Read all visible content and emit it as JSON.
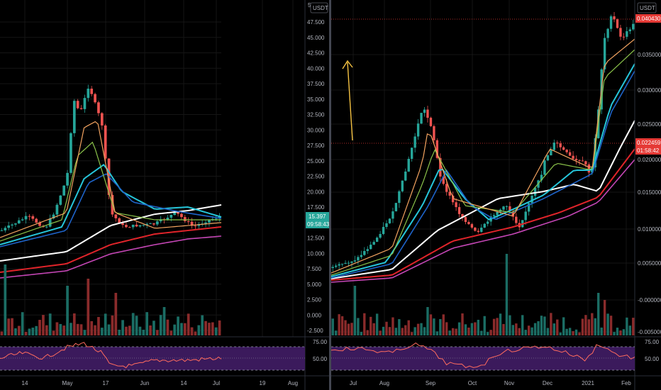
{
  "colors": {
    "bg": "#000000",
    "grid": "#1a1a1a",
    "up": "#26a69a",
    "down": "#ef5350",
    "upVol": "#1b6d64",
    "downVol": "#8a2b2b",
    "white_ma": "#ffffff",
    "red_ma": "#e0242a",
    "magenta_ma": "#c446b5",
    "cyan_ma": "#26c6da",
    "blue_ma": "#1e63c8",
    "green_ma": "#8bc34a",
    "orange_ma": "#f4a460",
    "rsi_band": "#3b1a5c",
    "rsi_line": "#ff6b5e",
    "arrow": "#f5c242",
    "badge_green": "#26a69a",
    "badge_red": "#e53935"
  },
  "left_chart": {
    "currency": "USDT",
    "currency_label_truncated": "5",
    "price_label": "15.397",
    "countdown": "09:58:43",
    "y_ticks": [
      "47.500",
      "45.000",
      "42.500",
      "40.000",
      "37.500",
      "35.000",
      "32.500",
      "30.000",
      "27.500",
      "25.000",
      "22.500",
      "20.000",
      "17.500",
      "15.000",
      "12.500",
      "10.000",
      "7.500",
      "5.000",
      "2.500",
      "0.000",
      "-2.500"
    ],
    "rsi_ticks": [
      "75.00",
      "50.00"
    ],
    "x_ticks": [
      "14",
      "May",
      "17",
      "Jun",
      "14",
      "Jul",
      "19",
      "Aug"
    ]
  },
  "right_chart": {
    "currency": "USDT",
    "price_label": "0.040430",
    "ref_price_label": "0.022459",
    "ref_countdown": "01:58:42",
    "y_ticks": [
      "0.035000",
      "0.030000",
      "0.025000",
      "0.020000",
      "0.015000",
      "0.010000",
      "0.005000",
      "-0.000000",
      "-0.005000"
    ],
    "rsi_ticks": [
      "75.00",
      "50.00"
    ],
    "x_ticks": [
      "Jul",
      "Aug",
      "Sep",
      "Oct",
      "Nov",
      "Dec",
      "2021",
      "Feb"
    ]
  },
  "icons": [
    "up-arrow-annotation-icon"
  ]
}
